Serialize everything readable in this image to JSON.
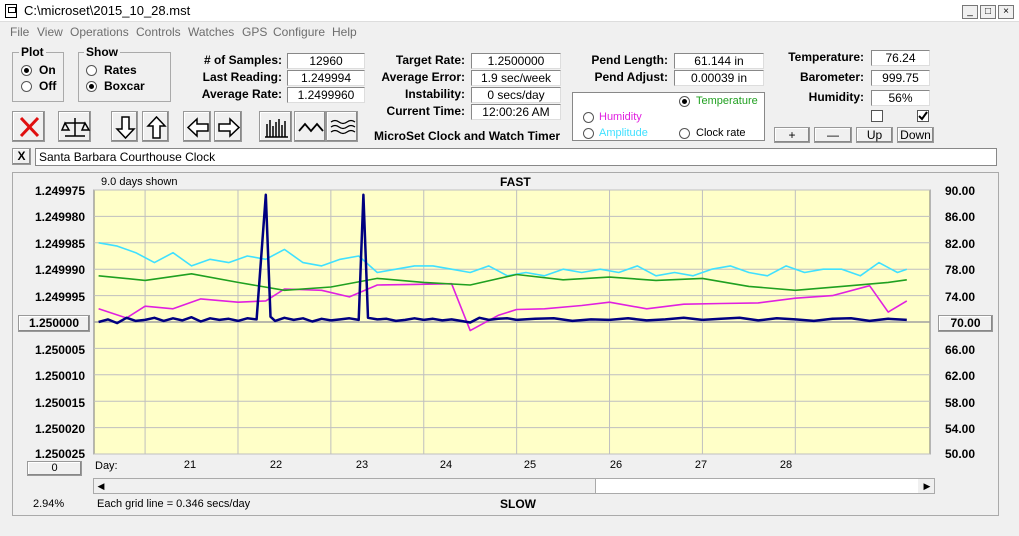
{
  "window": {
    "title": "C:\\microset\\2015_10_28.mst",
    "controls": [
      "_",
      "□",
      "×"
    ]
  },
  "menu": [
    "File",
    "View",
    "Operations",
    "Controls",
    "Watches",
    "GPS",
    "Configure",
    "Help"
  ],
  "plot_group": {
    "title": "Plot",
    "on": "On",
    "off": "Off",
    "selected": "On"
  },
  "show_group": {
    "title": "Show",
    "rates": "Rates",
    "boxcar": "Boxcar",
    "selected": "Boxcar"
  },
  "stats": {
    "samples_label": "# of Samples:",
    "samples": "12960",
    "last_reading_label": "Last Reading:",
    "last_reading": "1.249994",
    "average_rate_label": "Average Rate:",
    "average_rate": "1.2499960",
    "target_rate_label": "Target Rate:",
    "target_rate": "1.2500000",
    "average_error_label": "Average Error:",
    "average_error": "1.9 sec/week",
    "instability_label": "Instability:",
    "instability": "0 secs/day",
    "current_time_label": "Current Time:",
    "current_time": "12:00:26 AM",
    "pend_length_label": "Pend Length:",
    "pend_length": "61.144 in",
    "pend_adjust_label": "Pend Adjust:",
    "pend_adjust": "0.00039 in",
    "temperature_label": "Temperature:",
    "temperature": "76.24",
    "barometer_label": "Barometer:",
    "barometer": "999.75",
    "humidity_label": "Humidity:",
    "humidity": "56%"
  },
  "app_caption": "MicroSet Clock and Watch Timer",
  "sensor_options": {
    "temperature": "Temperature",
    "humidity": "Humidity",
    "amplitude": "Amplitude",
    "clock_rate": "Clock rate",
    "selected": "Temperature"
  },
  "checkboxes": {
    "first": false,
    "second": true
  },
  "adjust_buttons": {
    "plus": "+",
    "minus": "—",
    "up": "Up",
    "down": "Down"
  },
  "toolbar_icons": [
    "stop-icon",
    "scale-icon",
    "arrow-down-icon",
    "arrow-up-icon",
    "arrow-left-icon",
    "arrow-right-icon",
    "bar-chart-icon",
    "wave-icon",
    "multi-wave-icon"
  ],
  "clock_name": "Santa Barbara Courthouse Clock",
  "clear_button": "X",
  "chart_header": {
    "days_shown": "9.0 days shown",
    "fast": "FAST",
    "slow": "SLOW"
  },
  "chart_footer": {
    "day_label": "Day:",
    "percent": "2.94%",
    "grid_note": "Each grid line = 0.346 secs/day",
    "left_value_box": "1.250000",
    "right_value_box": "70.00",
    "bottom_value_box": "0"
  },
  "colors": {
    "plot_bg": "#ffffc8",
    "rate": "#000080",
    "temperature": "#20a020",
    "humidity": "#e020e0",
    "amplitude": "#40e0ff",
    "grid": "#bfbfbf",
    "center_line": "#a0a0a0"
  },
  "chart_data": {
    "type": "line",
    "x_unit": "day",
    "xlim": [
      20.45,
      29.45
    ],
    "x_ticks": [
      "21",
      "22",
      "23",
      "24",
      "25",
      "26",
      "27",
      "28"
    ],
    "y_left_ticks": [
      "1.249975",
      "1.249980",
      "1.249985",
      "1.249990",
      "1.249995",
      "1.250000",
      "1.250005",
      "1.250010",
      "1.250015",
      "1.250020",
      "1.250025"
    ],
    "y_left_range": [
      1.249975,
      1.250025
    ],
    "y_left_reversed": true,
    "y_right_ticks": [
      "90.00",
      "86.00",
      "82.00",
      "78.00",
      "74.00",
      "70.00",
      "66.00",
      "62.00",
      "58.00",
      "54.00",
      "50.00"
    ],
    "y_right_range": [
      50,
      90
    ],
    "series": [
      {
        "name": "",
        "color": "#000080",
        "axis": "left",
        "x": [
          20.5,
          20.6,
          20.7,
          20.8,
          20.9,
          21.0,
          21.1,
          21.2,
          21.3,
          21.4,
          21.5,
          21.6,
          21.7,
          21.8,
          21.9,
          22.0,
          22.1,
          22.2,
          22.3,
          22.35,
          22.4,
          22.5,
          22.6,
          22.7,
          22.8,
          22.9,
          23.0,
          23.1,
          23.2,
          23.3,
          23.35,
          23.4,
          23.5,
          23.6,
          23.7,
          23.8,
          23.9,
          24.0,
          24.1,
          24.2,
          24.3,
          24.4,
          24.5,
          24.6,
          24.7,
          24.8,
          24.9,
          25.0,
          25.2,
          25.4,
          25.6,
          25.8,
          26.0,
          26.2,
          26.4,
          26.6,
          26.8,
          27.0,
          27.2,
          27.4,
          27.6,
          27.8,
          28.0,
          28.2,
          28.4,
          28.6,
          28.8,
          29.0,
          29.2
        ],
        "y": [
          1.25,
          1.2499995,
          1.2500002,
          1.2499992,
          1.2499998,
          1.2499996,
          1.2499992,
          1.2499998,
          1.2499993,
          1.2499997,
          1.2499991,
          1.2499999,
          1.2499993,
          1.2499996,
          1.2499994,
          1.2499998,
          1.2499993,
          1.2499995,
          1.2499759,
          1.249999,
          1.2499998,
          1.2499992,
          1.2499996,
          1.2499993,
          1.2499999,
          1.2499994,
          1.2499997,
          1.2499995,
          1.2499993,
          1.2499996,
          1.2499759,
          1.2499992,
          1.2499995,
          1.2499994,
          1.2499998,
          1.2499996,
          1.2499993,
          1.2499996,
          1.2499994,
          1.2499997,
          1.2499995,
          1.2499998,
          1.2500001,
          1.2499992,
          1.2499996,
          1.2499994,
          1.2499993,
          1.2499996,
          1.2499994,
          1.2499993,
          1.2499998,
          1.2499995,
          1.2499996,
          1.2499993,
          1.2499997,
          1.2499995,
          1.2499992,
          1.2499996,
          1.2499994,
          1.2499992,
          1.2499997,
          1.2499993,
          1.2499995,
          1.2499998,
          1.2499994,
          1.2499993,
          1.2499998,
          1.2499994,
          1.2499996
        ]
      },
      {
        "name": "Temperature",
        "color": "#20a020",
        "axis": "right",
        "x": [
          20.5,
          21.0,
          21.5,
          22.0,
          22.5,
          23.0,
          23.5,
          24.0,
          24.5,
          25.0,
          25.5,
          26.0,
          26.5,
          27.0,
          27.5,
          28.0,
          28.5,
          29.0,
          29.2
        ],
        "y": [
          77.0,
          76.3,
          77.3,
          76.0,
          74.8,
          75.3,
          76.6,
          76.0,
          75.6,
          77.2,
          76.4,
          76.8,
          76.3,
          76.6,
          75.4,
          74.8,
          75.4,
          76.0,
          76.4
        ]
      },
      {
        "name": "Humidity",
        "color": "#e020e0",
        "axis": "right",
        "x": [
          20.5,
          20.8,
          21.0,
          21.3,
          21.6,
          22.0,
          22.3,
          22.5,
          22.9,
          23.2,
          23.5,
          23.9,
          24.3,
          24.5,
          24.8,
          25.0,
          25.3,
          25.7,
          26.0,
          26.4,
          26.8,
          27.2,
          27.6,
          28.0,
          28.4,
          28.8,
          29.0,
          29.2
        ],
        "y": [
          72.0,
          70.6,
          72.4,
          72.0,
          73.5,
          73.0,
          73.2,
          75.0,
          74.8,
          73.8,
          75.6,
          75.7,
          75.8,
          68.7,
          71.0,
          71.9,
          72.0,
          72.5,
          73.0,
          72.0,
          72.7,
          72.8,
          72.9,
          73.6,
          74.0,
          75.5,
          71.5,
          73.2
        ]
      },
      {
        "name": "Amplitude",
        "color": "#40e0ff",
        "axis": "right",
        "x": [
          20.5,
          20.7,
          20.9,
          21.1,
          21.3,
          21.5,
          21.7,
          21.9,
          22.1,
          22.3,
          22.5,
          22.7,
          22.9,
          23.1,
          23.3,
          23.5,
          23.7,
          23.9,
          24.1,
          24.3,
          24.5,
          24.7,
          24.9,
          25.1,
          25.3,
          25.5,
          25.7,
          25.9,
          26.1,
          26.3,
          26.5,
          26.7,
          26.9,
          27.1,
          27.3,
          27.5,
          27.7,
          27.9,
          28.1,
          28.3,
          28.5,
          28.7,
          28.9,
          29.1,
          29.2
        ],
        "y": [
          82.0,
          81.5,
          80.5,
          79.0,
          80.5,
          78.5,
          79.5,
          79.0,
          80.0,
          79.5,
          81.0,
          79.0,
          78.5,
          79.5,
          80.0,
          77.5,
          78.0,
          78.5,
          78.5,
          78.0,
          77.5,
          78.5,
          77.0,
          77.5,
          77.0,
          78.0,
          77.5,
          78.0,
          77.5,
          78.5,
          77.0,
          77.5,
          77.0,
          78.0,
          78.5,
          77.5,
          77.0,
          78.5,
          77.5,
          78.0,
          78.0,
          77.0,
          79.0,
          77.5,
          78.0
        ]
      }
    ]
  }
}
